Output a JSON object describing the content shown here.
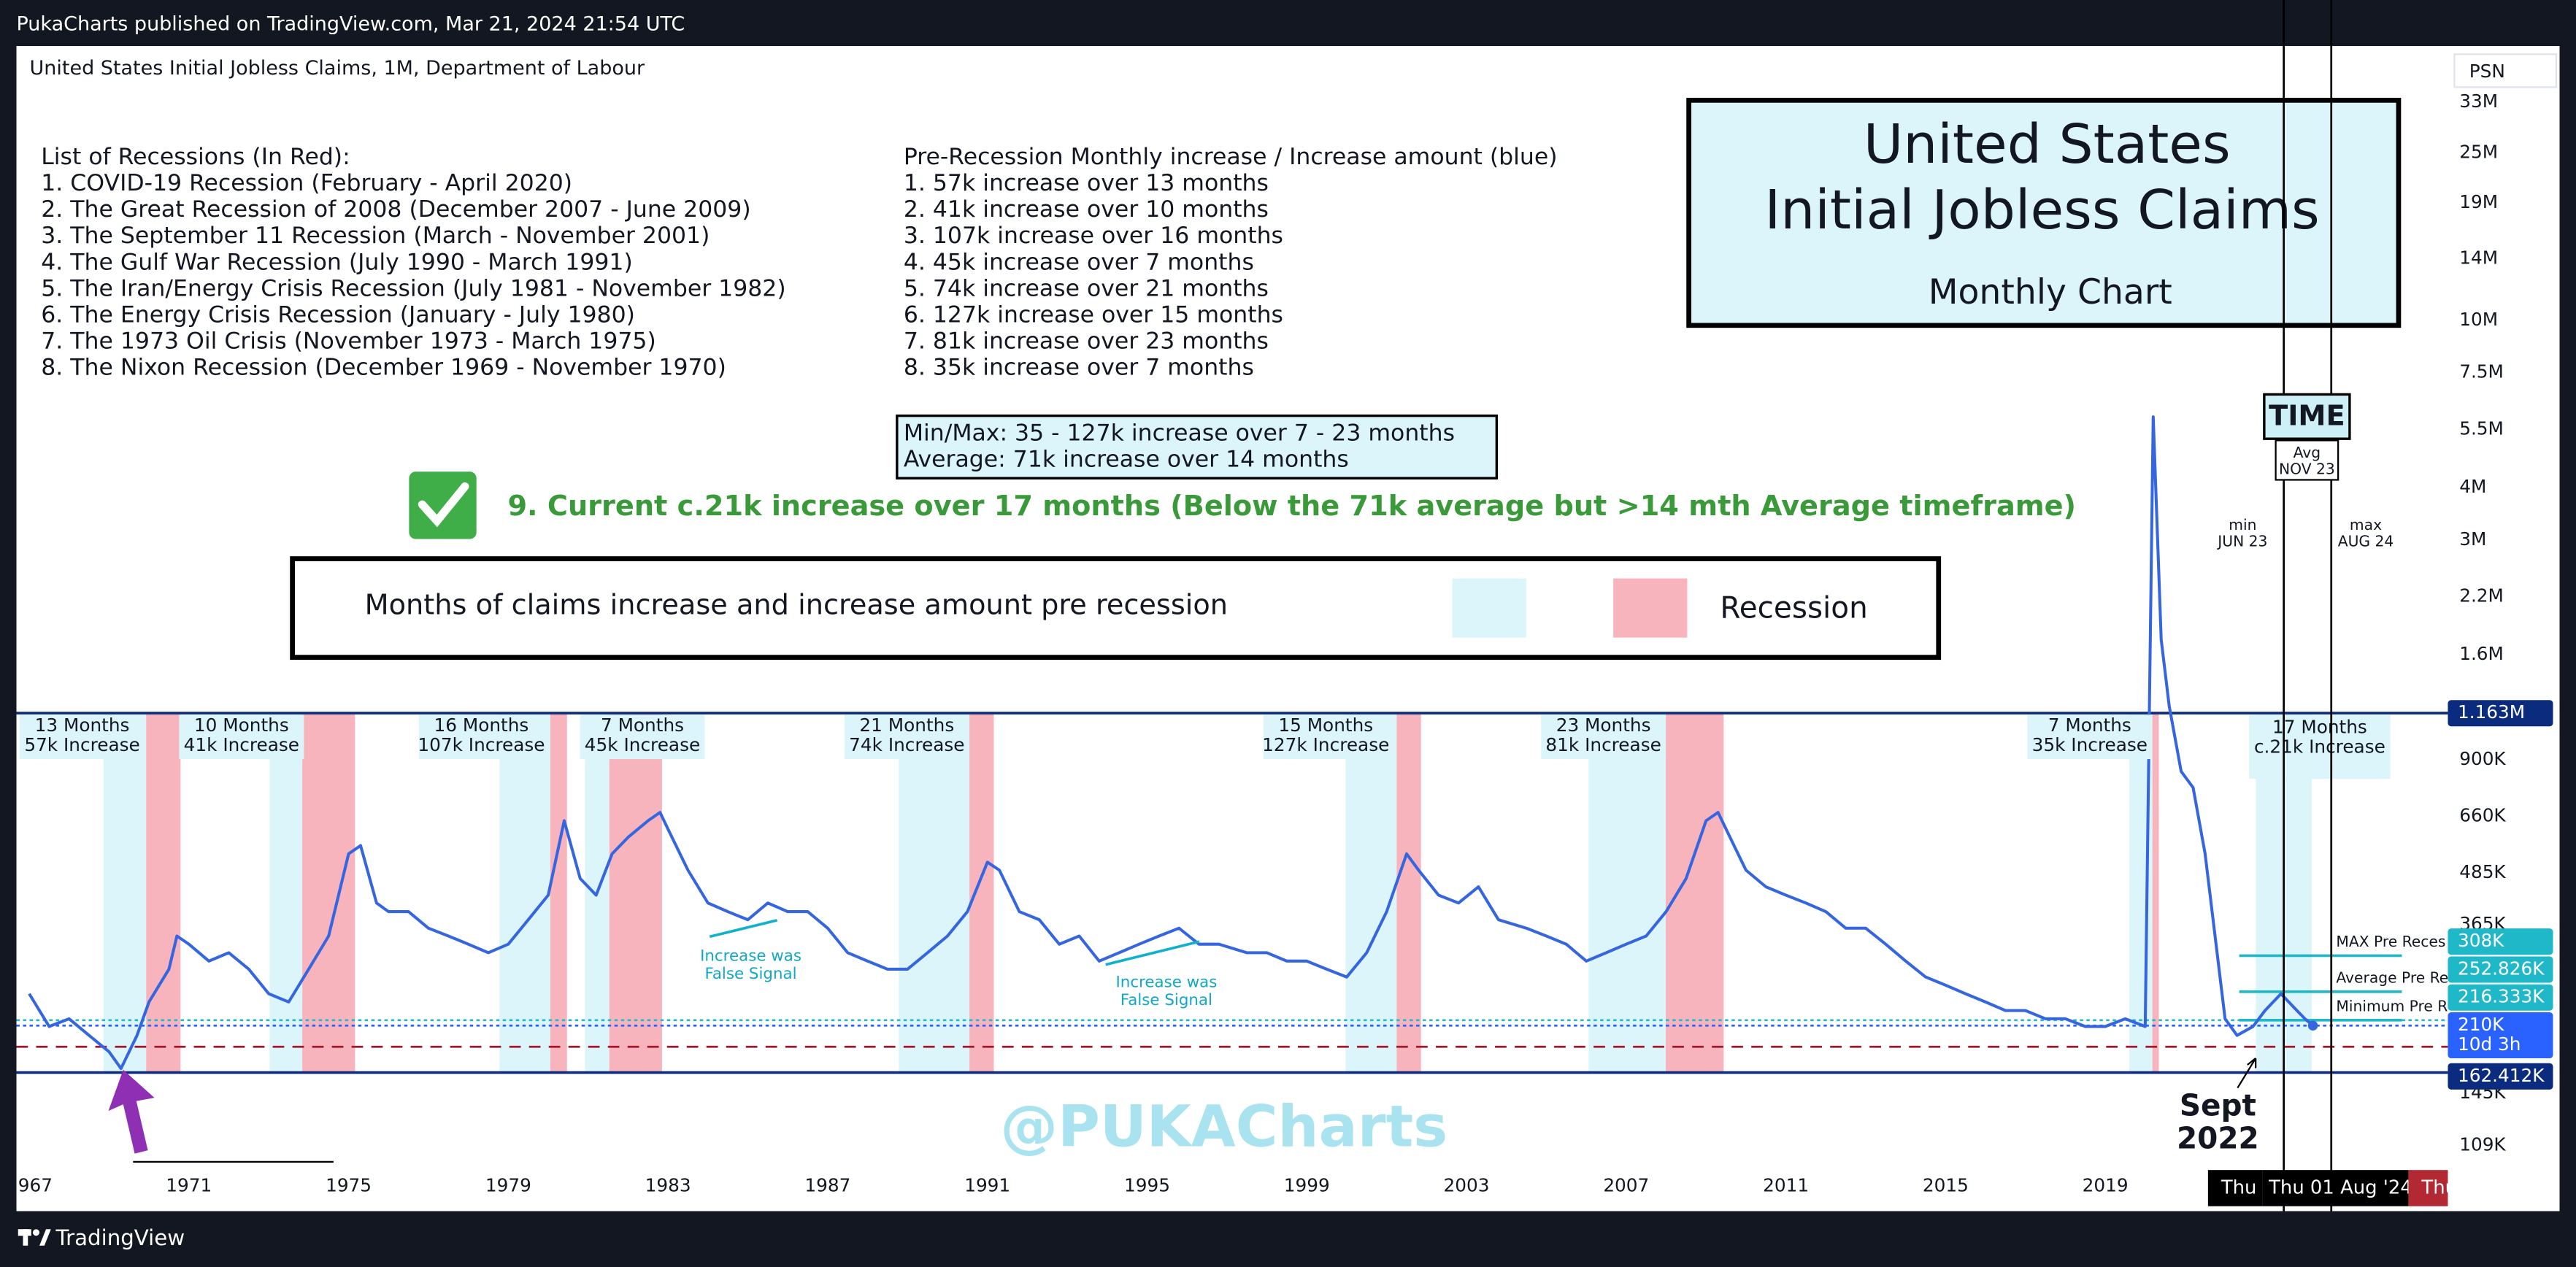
{
  "header": {
    "text": "PukaCharts published on TradingView.com, Mar 21, 2024 21:54 UTC"
  },
  "footer": {
    "brand": "TradingView"
  },
  "chart_data": {
    "type": "line",
    "symbol_title": "United States Initial Jobless Claims, 1M, Department of Labour",
    "symbol_badge": "PSN",
    "title": {
      "line1": "United States",
      "line2": "Initial Jobless Claims",
      "subtitle": "Monthly Chart"
    },
    "recession_list": {
      "heading": "List of Recessions (In Red):",
      "items": [
        "1. COVID-19 Recession (February - April 2020)",
        "2. The Great Recession of 2008 (December 2007 - June 2009)",
        "3. The September 11 Recession (March - November 2001)",
        "4. The Gulf War Recession (July 1990 - March 1991)",
        "5. The Iran/Energy Crisis Recession (July 1981 - November 1982)",
        "6. The Energy Crisis Recession (January - July 1980)",
        "7. The 1973 Oil Crisis (November 1973 - March 1975)",
        "8. The Nixon Recession (December 1969 - November 1970)"
      ]
    },
    "increase_list": {
      "heading": "Pre-Recession Monthly increase / Increase amount (blue)",
      "items": [
        "1. 57k increase over 13 months",
        "2. 41k increase over 10 months",
        "3. 107k increase over 16 months",
        "4. 45k increase over 7 months",
        "5. 74k increase over 21 months",
        "6. 127k increase over 15 months",
        "7. 81k increase over 23 months",
        "8. 35k increase over 7 months"
      ]
    },
    "stats": [
      "Min/Max: 35 - 127k increase over 7 - 23 months",
      "Average: 71k increase over 14 months"
    ],
    "current_note": "9. Current c.21k increase over 17 months (Below the 71k average but >14 mth Average timeframe)",
    "legend": {
      "description": "Months of claims increase and increase amount pre recession",
      "recession": "Recession"
    },
    "pre_increase_color": "#dcf5fa",
    "recession_color": "#f7b4bc",
    "color": "#3566e0",
    "log_scale": true,
    "xlim": [
      1966.68,
      2027.58
    ],
    "xticks": [
      {
        "value": 1967,
        "label": "967"
      },
      1971,
      1975,
      1979,
      1983,
      1987,
      1991,
      1995,
      1999,
      2003,
      2007,
      2011,
      2015,
      2019
    ],
    "ylim": [
      95200,
      44900000
    ],
    "yticks": [
      {
        "value": 33000000,
        "label": "33M"
      },
      {
        "value": 25000000,
        "label": "25M"
      },
      {
        "value": 19000000,
        "label": "19M"
      },
      {
        "value": 14000000,
        "label": "14M"
      },
      {
        "value": 10000000,
        "label": "10M"
      },
      {
        "value": 7500000,
        "label": "7.5M"
      },
      {
        "value": 5500000,
        "label": "5.5M"
      },
      {
        "value": 4000000,
        "label": "4M"
      },
      {
        "value": 3000000,
        "label": "3M"
      },
      {
        "value": 2200000,
        "label": "2.2M"
      },
      {
        "value": 1600000,
        "label": "1.6M"
      },
      {
        "value": 900000,
        "label": "900K"
      },
      {
        "value": 660000,
        "label": "660K"
      },
      {
        "value": 485000,
        "label": "485K"
      },
      {
        "value": 365000,
        "label": "365K"
      },
      {
        "value": 145000,
        "label": "145K"
      },
      {
        "value": 109000,
        "label": "109K"
      }
    ],
    "x": [
      1967.0,
      1967.5,
      1968.0,
      1968.5,
      1969.0,
      1969.3,
      1969.7,
      1970.0,
      1970.5,
      1970.7,
      1971.0,
      1971.5,
      1972.0,
      1972.5,
      1973.0,
      1973.5,
      1974.0,
      1974.5,
      1975.0,
      1975.3,
      1975.7,
      1976.0,
      1976.5,
      1977.0,
      1977.5,
      1978.0,
      1978.5,
      1979.0,
      1979.5,
      1980.0,
      1980.4,
      1980.8,
      1981.2,
      1981.6,
      1982.0,
      1982.5,
      1982.8,
      1983.0,
      1983.5,
      1984.0,
      1984.5,
      1985.0,
      1985.5,
      1986.0,
      1986.5,
      1987.0,
      1987.5,
      1988.0,
      1988.5,
      1989.0,
      1989.5,
      1990.0,
      1990.5,
      1991.0,
      1991.3,
      1991.8,
      1992.3,
      1992.8,
      1993.3,
      1993.8,
      1994.3,
      1994.8,
      1995.3,
      1995.8,
      1996.3,
      1996.8,
      1997.5,
      1998.0,
      1998.5,
      1999.0,
      1999.5,
      2000.0,
      2000.5,
      2001.0,
      2001.5,
      2001.8,
      2002.3,
      2002.8,
      2003.3,
      2003.8,
      2004.5,
      2005.0,
      2005.5,
      2006.0,
      2006.5,
      2007.0,
      2007.5,
      2008.0,
      2008.5,
      2009.0,
      2009.3,
      2009.7,
      2010.0,
      2010.5,
      2011.0,
      2011.5,
      2012.0,
      2012.5,
      2013.0,
      2013.5,
      2014.0,
      2014.5,
      2015.0,
      2015.5,
      2016.0,
      2016.5,
      2017.0,
      2017.5,
      2018.0,
      2018.5,
      2019.0,
      2019.5,
      2020.0,
      2020.2,
      2020.4,
      2020.6,
      2020.9,
      2021.2,
      2021.5,
      2021.8,
      2022.0,
      2022.3,
      2022.7,
      2023.0,
      2023.4,
      2023.8,
      2024.0,
      2024.2
    ],
    "values": [
      250000,
      209000,
      218000,
      199000,
      182000,
      166000,
      199000,
      239000,
      286000,
      343000,
      328000,
      299000,
      313000,
      286000,
      250000,
      239000,
      286000,
      343000,
      538000,
      563000,
      411000,
      392000,
      392000,
      358000,
      343000,
      328000,
      313000,
      328000,
      375000,
      429000,
      645000,
      470000,
      429000,
      538000,
      589000,
      645000,
      675000,
      616000,
      492000,
      411000,
      392000,
      375000,
      411000,
      392000,
      392000,
      358000,
      313000,
      299000,
      286000,
      286000,
      313000,
      343000,
      392000,
      514000,
      492000,
      392000,
      375000,
      328000,
      343000,
      299000,
      313000,
      328000,
      343000,
      358000,
      328000,
      328000,
      313000,
      313000,
      299000,
      299000,
      286000,
      274000,
      313000,
      392000,
      538000,
      492000,
      429000,
      411000,
      449000,
      375000,
      358000,
      343000,
      328000,
      299000,
      313000,
      328000,
      343000,
      392000,
      470000,
      645000,
      675000,
      563000,
      492000,
      449000,
      429000,
      411000,
      392000,
      358000,
      358000,
      328000,
      299000,
      274000,
      262000,
      250000,
      239000,
      228000,
      228000,
      218000,
      218000,
      209000,
      209000,
      218000,
      209000,
      5890000,
      1740000,
      1210000,
      845000,
      773000,
      538000,
      313000,
      218000,
      199000,
      209000,
      228000,
      250000,
      228000,
      218000,
      210000
    ],
    "pre_increase": [
      {
        "start": 1968.86,
        "end": 1969.93,
        "label": [
          "13 Months",
          "57k Increase"
        ]
      },
      {
        "start": 1973.02,
        "end": 1973.84,
        "label": [
          "10 Months",
          "41k Increase"
        ]
      },
      {
        "start": 1978.78,
        "end": 1980.05,
        "label": [
          "16 Months",
          "107k Increase"
        ]
      },
      {
        "start": 1980.92,
        "end": 1981.53,
        "label": [
          "7 Months",
          "45k Increase"
        ]
      },
      {
        "start": 1988.78,
        "end": 1990.55,
        "label": [
          "21 Months",
          "74k Increase"
        ]
      },
      {
        "start": 1999.97,
        "end": 2001.25,
        "label": [
          "15 Months",
          "127k Increase"
        ]
      },
      {
        "start": 2006.06,
        "end": 2007.99,
        "label": [
          "23 Months",
          "81k Increase"
        ]
      },
      {
        "start": 2019.6,
        "end": 2020.18,
        "label": [
          "7 Months",
          "35k Increase"
        ]
      },
      {
        "start": 2022.77,
        "end": 2024.17,
        "label": [
          "17 Months",
          "c.21k Increase"
        ]
      }
    ],
    "recessions": [
      {
        "start": 1969.93,
        "end": 1970.79
      },
      {
        "start": 1973.84,
        "end": 1975.16
      },
      {
        "start": 1980.05,
        "end": 1980.47
      },
      {
        "start": 1981.53,
        "end": 1982.85
      },
      {
        "start": 1990.55,
        "end": 1991.16
      },
      {
        "start": 2001.25,
        "end": 2001.86
      },
      {
        "start": 2007.99,
        "end": 2009.44
      },
      {
        "start": 2020.18,
        "end": 2020.34
      }
    ],
    "levels": [
      {
        "value": 1163000,
        "label": "1.163M",
        "color": "#0b2b7e",
        "style": "solid",
        "extent": "full"
      },
      {
        "value": 308000,
        "label": "308K",
        "color": "#1fb8c9",
        "style": "solid",
        "extent": "recent",
        "note": "MAX Pre Reces"
      },
      {
        "value": 252826,
        "label": "252.826K",
        "color": "#1fb8c9",
        "style": "solid",
        "extent": "recent",
        "note": "Average Pre Re"
      },
      {
        "value": 216333,
        "label": "216.333K",
        "color": "#1fb8c9",
        "style": "dotted",
        "extent": "full",
        "note": "Minimum Pre R"
      },
      {
        "value": 210000,
        "label": "210K",
        "countdown": "10d 3h",
        "color": "#2962ff",
        "style": "dotted",
        "extent": "full"
      },
      {
        "value": 162412,
        "label": "162.412K",
        "color": "#0b2b7e",
        "style": "solid",
        "extent": "full"
      },
      {
        "value": 187000,
        "color": "#a3172b",
        "style": "dashed",
        "extent": "full"
      }
    ],
    "time_heading": "TIME",
    "time_markers": [
      {
        "x": 2023.47,
        "label": [
          "min",
          "JUN 23"
        ]
      },
      {
        "x": 2024.66,
        "label": [
          "max",
          "AUG 24"
        ]
      }
    ],
    "avg_marker": {
      "x": 2024.05,
      "label": [
        "Avg",
        "NOV 23"
      ]
    },
    "annotations": [
      [
        "Increase was",
        "False Signal"
      ],
      [
        "Increase was",
        "False Signal"
      ]
    ],
    "sept_label": [
      "Sept",
      "2022"
    ],
    "watermark": "@PUKACharts",
    "crosshair_labels": [
      {
        "text": "Thu",
        "color": "#000000"
      },
      {
        "text": "Thu 01 Aug '24",
        "color": "#000000"
      },
      {
        "text": "Thu",
        "color": "#b22833"
      }
    ]
  }
}
